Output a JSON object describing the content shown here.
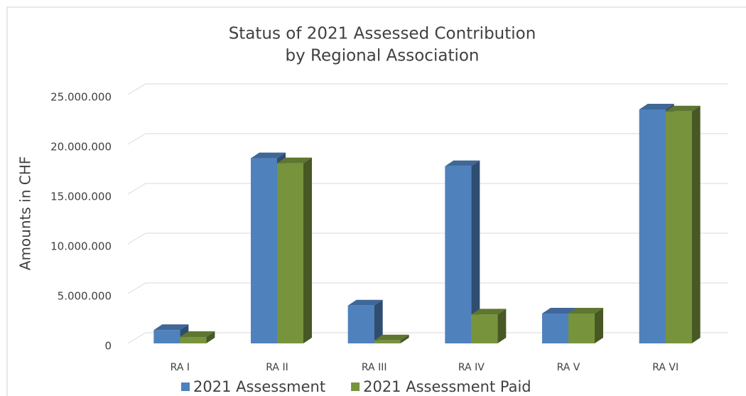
{
  "chart_data": {
    "type": "bar3d",
    "title": [
      "Status of 2021 Assessed Contribution",
      "by Regional Association"
    ],
    "y_label": "Amounts in CHF",
    "categories": [
      "RA I",
      "RA II",
      "RA III",
      "RA IV",
      "RA V",
      "RA VI"
    ],
    "series": [
      {
        "name": "2021 Assessment",
        "color": "#4f81bd",
        "values": [
          1340000,
          18600000,
          3800000,
          17800000,
          3000000,
          23500000
        ]
      },
      {
        "name": "2021 Assessment Paid",
        "color": "#77933c",
        "values": [
          640000,
          18100000,
          300000,
          2900000,
          3000000,
          23300000
        ]
      }
    ],
    "ylim": [
      0,
      25000000
    ],
    "yticks": [
      {
        "value": 0,
        "label": "0"
      },
      {
        "value": 5000000,
        "label": "5.000.000"
      },
      {
        "value": 10000000,
        "label": "10.000.000"
      },
      {
        "value": 15000000,
        "label": "15.000.000"
      },
      {
        "value": 20000000,
        "label": "20.000.000"
      },
      {
        "value": 25000000,
        "label": "25.000.000"
      }
    ],
    "grid": true,
    "legend": "bottom"
  }
}
